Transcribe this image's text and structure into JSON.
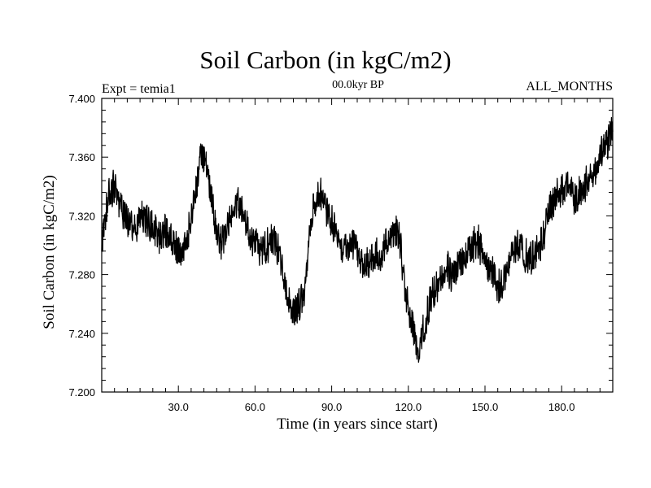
{
  "chart_data": {
    "type": "line",
    "title": "Soil Carbon (in kgC/m2)",
    "subtitle_left": "Expt = temia1",
    "subtitle_center": "00.0kyr BP",
    "subtitle_right": "ALL_MONTHS",
    "xlabel": "Time (in years since start)",
    "ylabel": "Soil Carbon (in kgC/m2)",
    "xlim": [
      0,
      200
    ],
    "ylim": [
      7.2,
      7.4
    ],
    "xticks": [
      30,
      60,
      90,
      120,
      150,
      180
    ],
    "xtick_labels": [
      "30.0",
      "60.0",
      "90.0",
      "120.0",
      "150.0",
      "180.0"
    ],
    "yticks": [
      7.2,
      7.24,
      7.28,
      7.32,
      7.36,
      7.4
    ],
    "ytick_labels": [
      "7.200",
      "7.240",
      "7.280",
      "7.320",
      "7.360",
      "7.400"
    ],
    "grid": false,
    "line_color": "#000000",
    "series": [
      {
        "x": [
          0,
          1,
          3,
          5,
          7,
          9,
          11,
          13,
          15,
          17,
          19,
          21,
          23,
          25,
          27,
          29,
          31,
          33,
          35,
          37,
          39,
          41,
          43,
          45,
          47,
          49,
          51,
          53,
          55,
          57,
          59,
          61,
          63,
          65,
          67,
          69,
          71,
          73,
          75,
          77,
          79,
          81,
          83,
          85,
          87,
          89,
          91,
          93,
          95,
          97,
          99,
          101,
          103,
          105,
          107,
          109,
          111,
          113,
          115,
          117,
          119,
          121,
          123,
          124,
          125,
          127,
          129,
          131,
          133,
          135,
          137,
          139,
          141,
          143,
          145,
          147,
          149,
          151,
          153,
          155,
          157,
          159,
          161,
          163,
          165,
          167,
          169,
          171,
          173,
          175,
          177,
          179,
          181,
          183,
          185,
          187,
          189,
          191,
          193,
          195,
          197,
          199,
          200
        ],
        "y": [
          7.295,
          7.315,
          7.335,
          7.34,
          7.33,
          7.32,
          7.315,
          7.312,
          7.32,
          7.318,
          7.315,
          7.31,
          7.305,
          7.31,
          7.305,
          7.298,
          7.295,
          7.3,
          7.32,
          7.34,
          7.36,
          7.355,
          7.33,
          7.31,
          7.3,
          7.315,
          7.32,
          7.33,
          7.325,
          7.31,
          7.305,
          7.3,
          7.295,
          7.3,
          7.305,
          7.298,
          7.28,
          7.26,
          7.255,
          7.26,
          7.265,
          7.3,
          7.33,
          7.335,
          7.33,
          7.32,
          7.31,
          7.3,
          7.295,
          7.3,
          7.305,
          7.29,
          7.285,
          7.29,
          7.295,
          7.292,
          7.3,
          7.31,
          7.31,
          7.3,
          7.265,
          7.25,
          7.235,
          7.225,
          7.235,
          7.25,
          7.265,
          7.27,
          7.28,
          7.285,
          7.28,
          7.285,
          7.29,
          7.295,
          7.3,
          7.305,
          7.295,
          7.285,
          7.28,
          7.27,
          7.275,
          7.29,
          7.295,
          7.3,
          7.295,
          7.29,
          7.295,
          7.3,
          7.305,
          7.325,
          7.33,
          7.335,
          7.34,
          7.345,
          7.33,
          7.335,
          7.34,
          7.345,
          7.35,
          7.36,
          7.365,
          7.375,
          7.38
        ]
      }
    ]
  }
}
